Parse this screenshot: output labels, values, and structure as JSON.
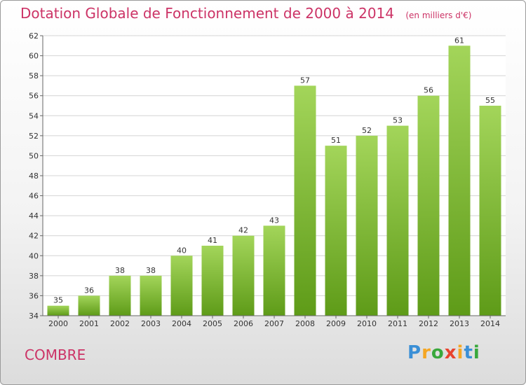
{
  "header": {
    "title": "Dotation Globale de Fonctionnement de 2000 à 2014",
    "unit": "(en milliers d'€)"
  },
  "footer": {
    "commune": "COMBRE",
    "logo_text": "Proxiti"
  },
  "colors": {
    "title": "#cc3366",
    "bar_light": "#a3d55a",
    "bar_dark": "#5e9b18",
    "grid": "#d4d4d4"
  },
  "chart_data": {
    "type": "bar",
    "title": "Dotation Globale de Fonctionnement de 2000 à 2014",
    "subtitle": "(en milliers d'€)",
    "xlabel": "",
    "ylabel": "",
    "categories": [
      "2000",
      "2001",
      "2002",
      "2003",
      "2004",
      "2005",
      "2006",
      "2007",
      "2008",
      "2009",
      "2010",
      "2011",
      "2012",
      "2013",
      "2014"
    ],
    "values": [
      35,
      36,
      38,
      38,
      40,
      41,
      42,
      43,
      57,
      51,
      52,
      53,
      56,
      61,
      55
    ],
    "ylim": [
      34,
      62
    ],
    "yticks": [
      34,
      36,
      38,
      40,
      42,
      44,
      46,
      48,
      50,
      52,
      54,
      56,
      58,
      60,
      62
    ],
    "grid": true,
    "legend": "none"
  }
}
